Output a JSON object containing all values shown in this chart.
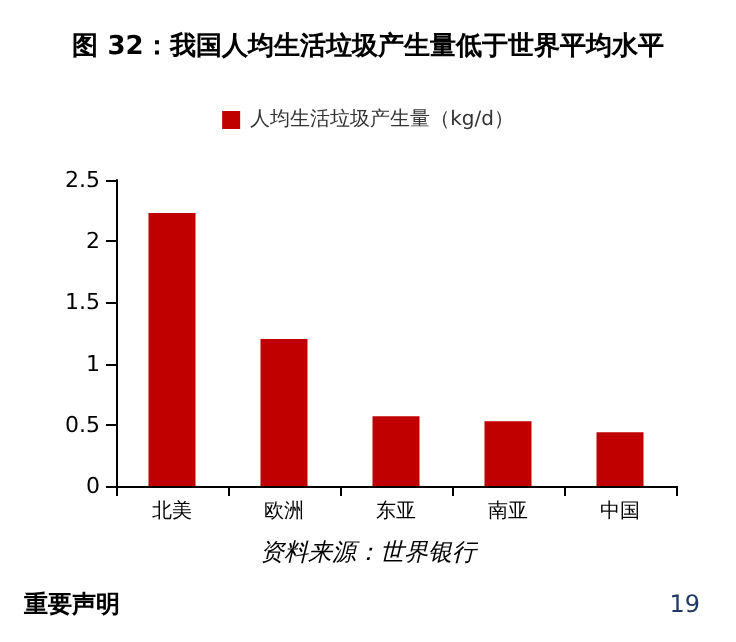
{
  "chart_data": {
    "type": "bar",
    "title": "图 32：我国人均生活垃圾产生量低于世界平均水平",
    "categories": [
      "北美",
      "欧洲",
      "东亚",
      "南亚",
      "中国"
    ],
    "series": [
      {
        "name": "人均生活垃圾产生量（kg/d）",
        "color": "#c00000",
        "values": [
          2.23,
          1.2,
          0.57,
          0.53,
          0.44
        ]
      }
    ],
    "ylim": [
      0,
      2.5
    ],
    "yticks": [
      0,
      0.5,
      1,
      1.5,
      2,
      2.5
    ],
    "grid": false,
    "legend": "top",
    "annotations": [
      "资料来源：世界银行",
      "重要声明",
      "19"
    ]
  }
}
